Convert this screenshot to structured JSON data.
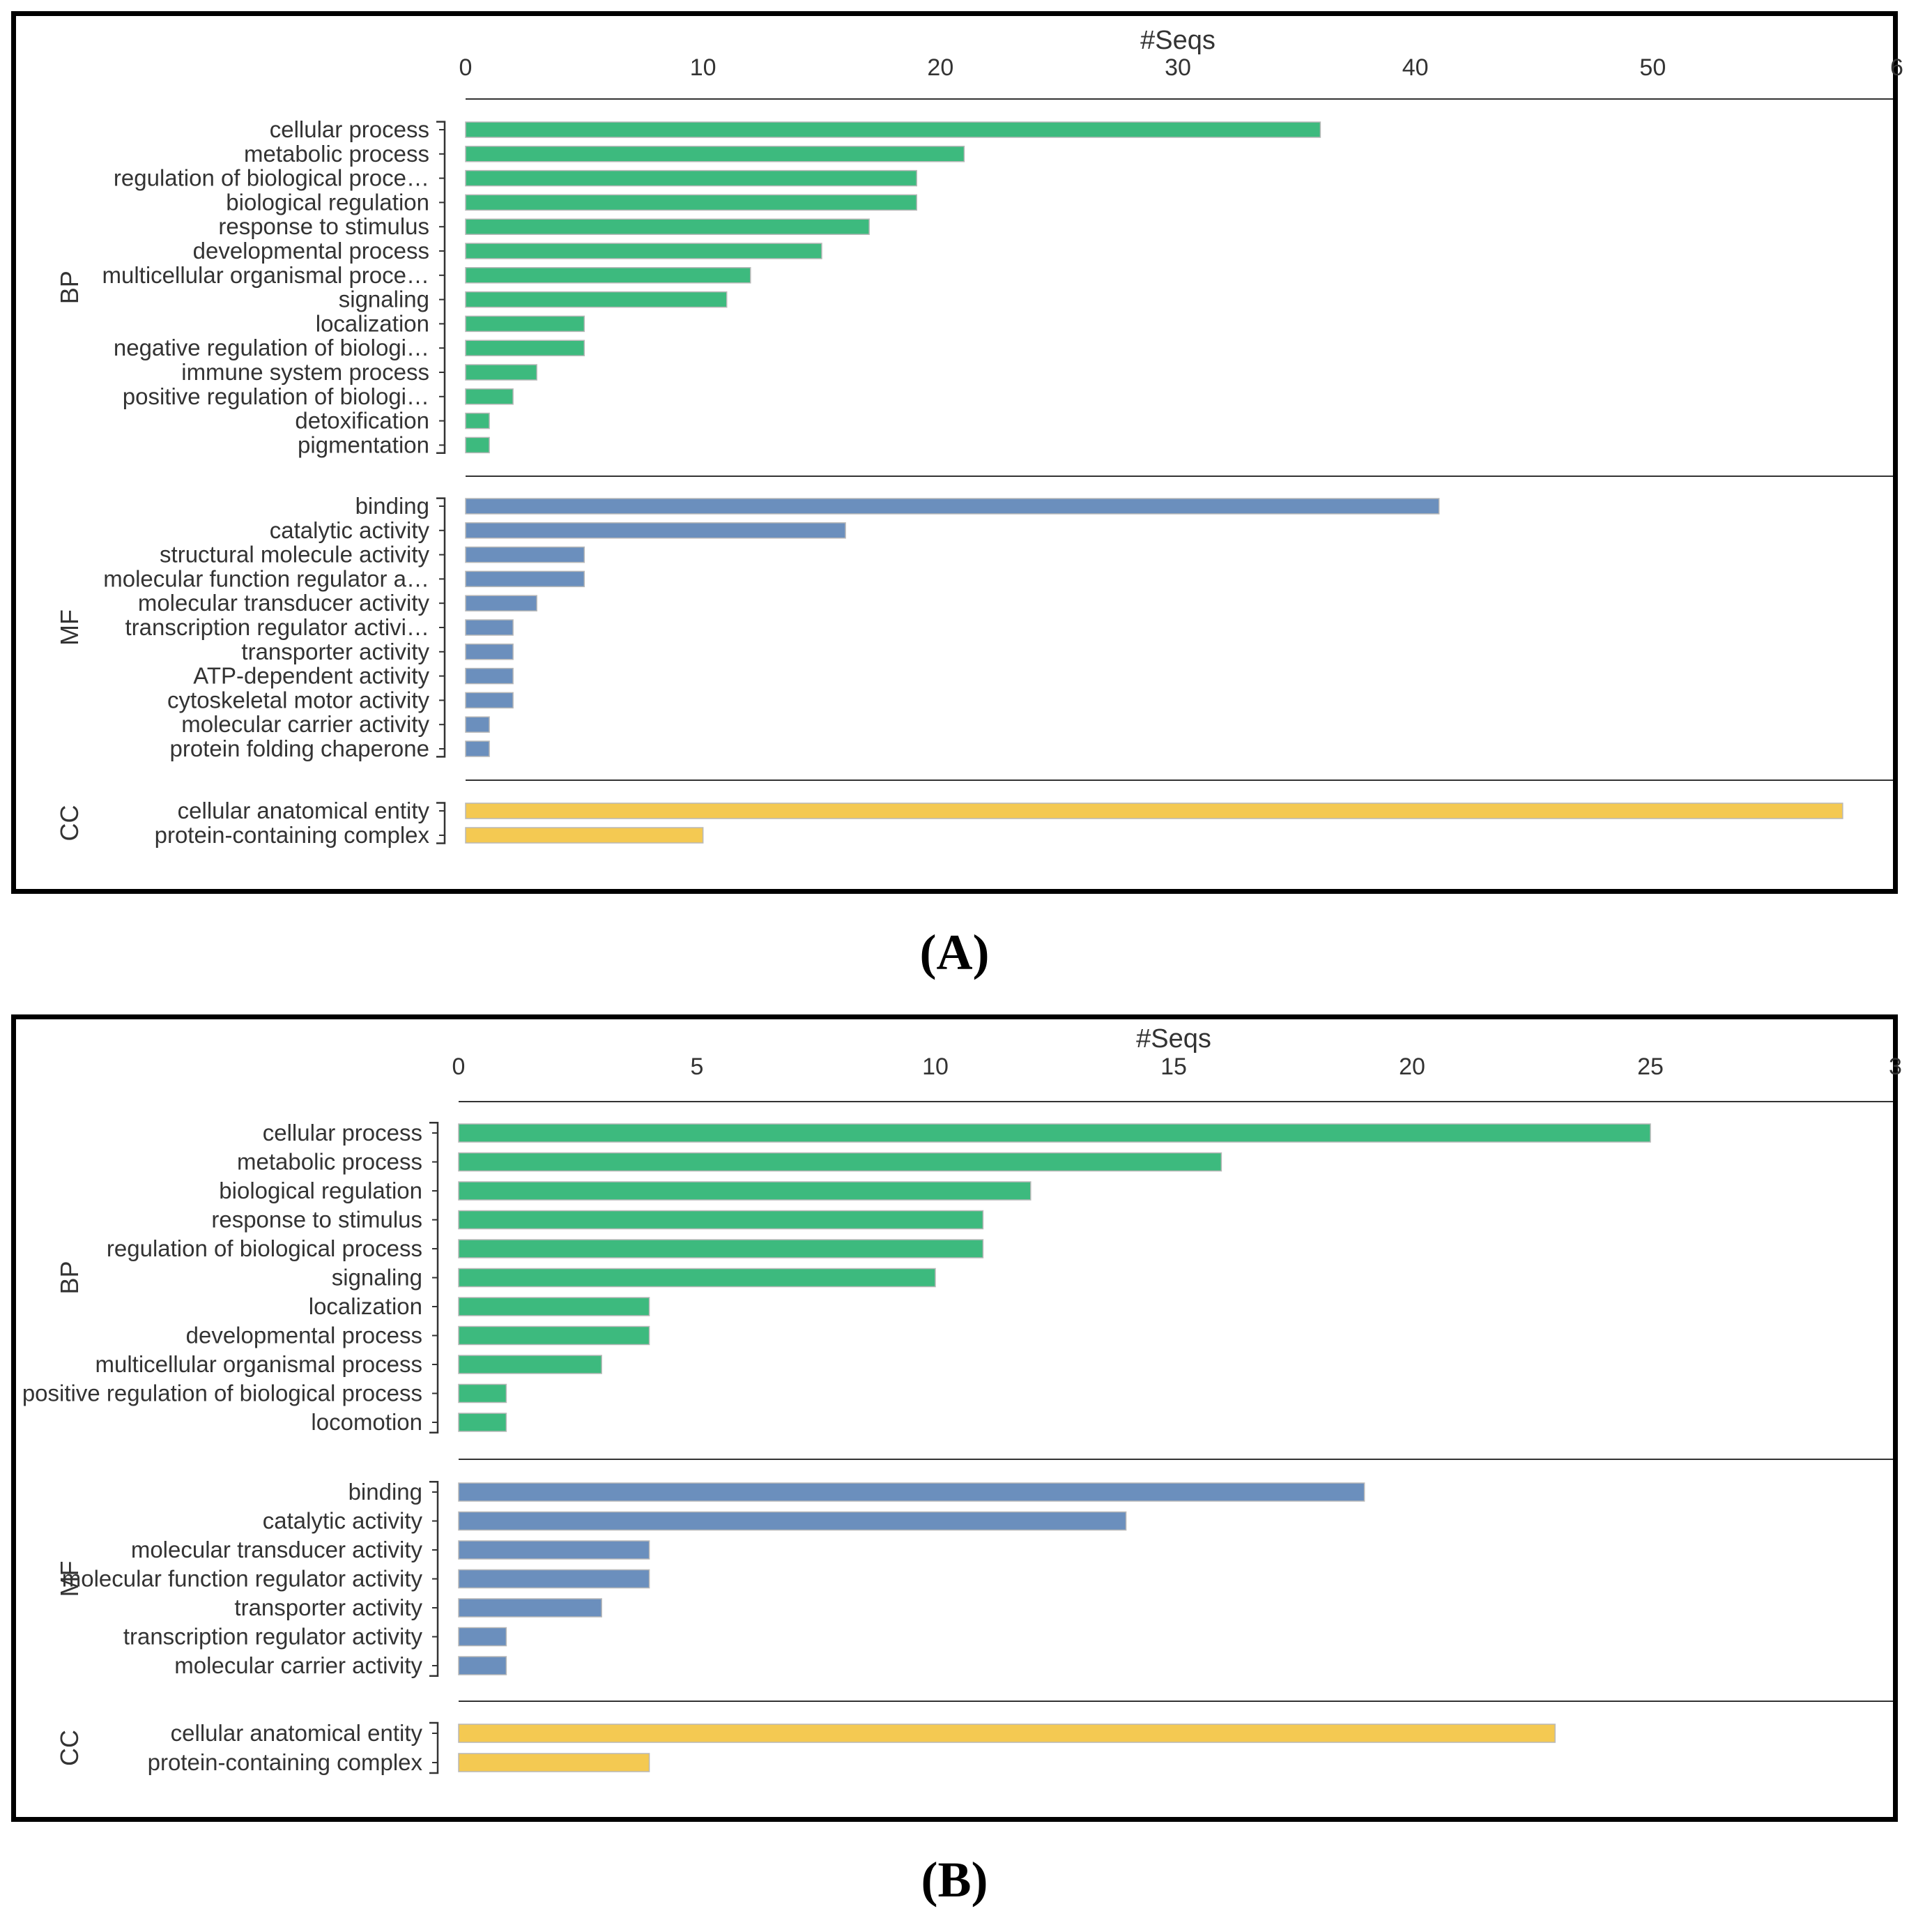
{
  "colors": {
    "BP": "#3dba7e",
    "MF": "#6b8fbd",
    "CC": "#f4c952",
    "bar_stroke": "#b8b8b8",
    "frame": "#000000",
    "text": "#333333"
  },
  "chart_data": [
    {
      "panel_label": "A",
      "type": "bar",
      "orientation": "horizontal",
      "xlabel": "#Seqs",
      "xlim": [
        0,
        60
      ],
      "ticks": [
        "0",
        "10",
        "20",
        "30",
        "40",
        "50",
        "6"
      ],
      "groups": [
        {
          "name": "BP",
          "categories": [
            "cellular process",
            "metabolic process",
            "regulation of biological proce…",
            "biological regulation",
            "response to stimulus",
            "developmental process",
            "multicellular organismal proce…",
            "signaling",
            "localization",
            "negative regulation of biologi…",
            "immune system process",
            "positive regulation of biologi…",
            "detoxification",
            "pigmentation"
          ],
          "values": [
            36,
            21,
            19,
            19,
            17,
            15,
            12,
            11,
            5,
            5,
            3,
            2,
            1,
            1
          ]
        },
        {
          "name": "MF",
          "categories": [
            "binding",
            "catalytic activity",
            "structural molecule activity",
            "molecular function regulator a…",
            "molecular transducer activity",
            "transcription regulator activi…",
            "transporter activity",
            "ATP-dependent activity",
            "cytoskeletal motor activity",
            "molecular carrier activity",
            "protein folding chaperone"
          ],
          "values": [
            41,
            16,
            5,
            5,
            3,
            2,
            2,
            2,
            2,
            1,
            1
          ]
        },
        {
          "name": "CC",
          "categories": [
            "cellular anatomical entity",
            "protein-containing complex"
          ],
          "values": [
            58,
            10
          ]
        }
      ]
    },
    {
      "panel_label": "B",
      "type": "bar",
      "orientation": "horizontal",
      "xlabel": "#Seqs",
      "xlim": [
        0,
        30
      ],
      "ticks": [
        "0",
        "5",
        "10",
        "15",
        "20",
        "25",
        "3"
      ],
      "groups": [
        {
          "name": "BP",
          "categories": [
            "cellular process",
            "metabolic process",
            "biological regulation",
            "response to stimulus",
            "regulation of biological process",
            "signaling",
            "localization",
            "developmental process",
            "multicellular organismal process",
            "positive regulation of biological process",
            "locomotion"
          ],
          "values": [
            25,
            16,
            12,
            11,
            11,
            10,
            4,
            4,
            3,
            1,
            1
          ]
        },
        {
          "name": "MF",
          "categories": [
            "binding",
            "catalytic activity",
            "molecular transducer activity",
            "molecular function regulator activity",
            "transporter activity",
            "transcription regulator activity",
            "molecular carrier activity"
          ],
          "values": [
            19,
            14,
            4,
            4,
            3,
            1,
            1
          ]
        },
        {
          "name": "CC",
          "categories": [
            "cellular anatomical entity",
            "protein-containing complex"
          ],
          "values": [
            23,
            4
          ]
        }
      ]
    }
  ]
}
